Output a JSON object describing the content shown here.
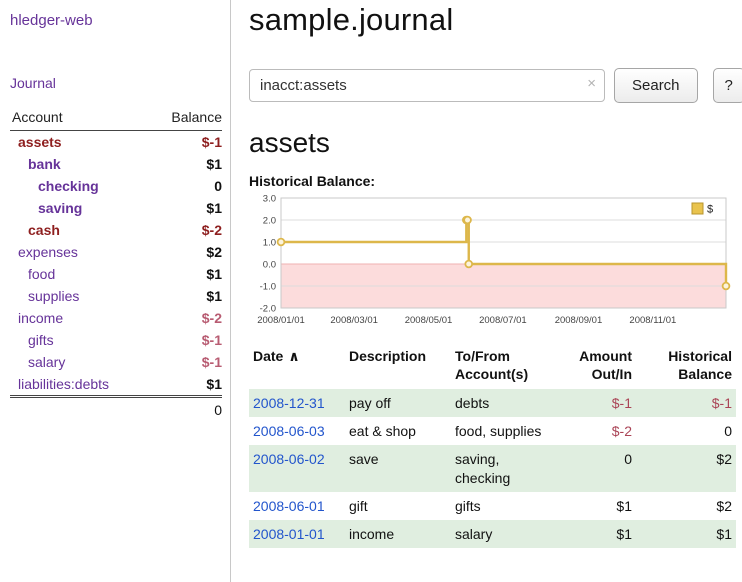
{
  "sidebar": {
    "brand": "hledger-web",
    "journal_link": "Journal",
    "accounts_header": {
      "account": "Account",
      "balance": "Balance"
    },
    "accounts": [
      {
        "name": "assets",
        "indent": 1,
        "balance": "$-1",
        "name_class": "neg-strong",
        "balance_class": "neg-strong"
      },
      {
        "name": "bank",
        "indent": 2,
        "balance": "$1",
        "name_class": "purple-strong",
        "balance_class": ""
      },
      {
        "name": "checking",
        "indent": 3,
        "balance": "0",
        "name_class": "purple-strong",
        "balance_class": ""
      },
      {
        "name": "saving",
        "indent": 3,
        "balance": "$1",
        "name_class": "purple-strong",
        "balance_class": ""
      },
      {
        "name": "cash",
        "indent": 2,
        "balance": "$-2",
        "name_class": "neg-strong",
        "balance_class": "neg-strong"
      },
      {
        "name": "expenses",
        "indent": 1,
        "balance": "$2",
        "name_class": "",
        "balance_class": ""
      },
      {
        "name": "food",
        "indent": 2,
        "balance": "$1",
        "name_class": "",
        "balance_class": ""
      },
      {
        "name": "supplies",
        "indent": 2,
        "balance": "$1",
        "name_class": "",
        "balance_class": ""
      },
      {
        "name": "income",
        "indent": 1,
        "balance": "$-2",
        "name_class": "",
        "balance_class": "neg"
      },
      {
        "name": "gifts",
        "indent": 2,
        "balance": "$-1",
        "name_class": "",
        "balance_class": "neg"
      },
      {
        "name": "salary",
        "indent": 2,
        "balance": "$-1",
        "name_class": "",
        "balance_class": "neg"
      },
      {
        "name": "liabilities:debts",
        "indent": 1,
        "balance": "$1",
        "name_class": "",
        "balance_class": ""
      }
    ],
    "total": "0"
  },
  "header": {
    "title": "sample.journal"
  },
  "search": {
    "value": "inacct:assets",
    "clear_icon": "×",
    "button_label": "Search",
    "help_label": "?"
  },
  "account_page": {
    "heading": "assets",
    "chart_label": "Historical Balance:"
  },
  "chart_data": {
    "type": "line",
    "title": "Historical Balance",
    "step": "after",
    "series": [
      {
        "name": "$",
        "points": [
          [
            "2008-01-01",
            1
          ],
          [
            "2008-06-01",
            2
          ],
          [
            "2008-06-02",
            2
          ],
          [
            "2008-06-03",
            0
          ],
          [
            "2008-12-31",
            -1
          ]
        ]
      }
    ],
    "x_range": [
      "2008-01-01",
      "2008-12-31"
    ],
    "x_ticks": [
      "2008/01/01",
      "2008/03/01",
      "2008/05/01",
      "2008/07/01",
      "2008/09/01",
      "2008/11/01"
    ],
    "y_ticks": [
      3.0,
      2.0,
      1.0,
      0.0,
      -1.0,
      -2.0
    ],
    "ylim": [
      -2.0,
      3.0
    ],
    "legend_position": "top-right",
    "line_color": "#ddb74a",
    "marker_fill": "#fcf4dd",
    "negative_fill": "#fcdcdc",
    "legend_fill": "#e9c34d"
  },
  "register": {
    "columns": [
      "Date",
      "Description",
      "To/From Account(s)",
      "Amount Out/In",
      "Historical Balance"
    ],
    "sort_indicator": "∧",
    "rows": [
      {
        "date": "2008-12-31",
        "description": "pay off",
        "accounts": "debts",
        "amount": "$-1",
        "amount_negative": true,
        "balance": "$-1",
        "balance_negative": true,
        "shaded": true
      },
      {
        "date": "2008-06-03",
        "description": "eat & shop",
        "accounts": "food, supplies",
        "amount": "$-2",
        "amount_negative": true,
        "balance": "0",
        "balance_negative": false,
        "shaded": false
      },
      {
        "date": "2008-06-02",
        "description": "save",
        "accounts": "saving, checking",
        "amount": "0",
        "amount_negative": false,
        "balance": "$2",
        "balance_negative": false,
        "shaded": true
      },
      {
        "date": "2008-06-01",
        "description": "gift",
        "accounts": "gifts",
        "amount": "$1",
        "amount_negative": false,
        "balance": "$2",
        "balance_negative": false,
        "shaded": false
      },
      {
        "date": "2008-01-01",
        "description": "income",
        "accounts": "salary",
        "amount": "$1",
        "amount_negative": false,
        "balance": "$1",
        "balance_negative": false,
        "shaded": true
      }
    ]
  },
  "colors": {
    "accent_purple": "#663399",
    "negative_strong": "#8e1f1f",
    "negative": "#aa4456",
    "row_shade": "#e0eee0",
    "link_blue": "#2255cc",
    "chart_gold": "#ddb74a"
  }
}
